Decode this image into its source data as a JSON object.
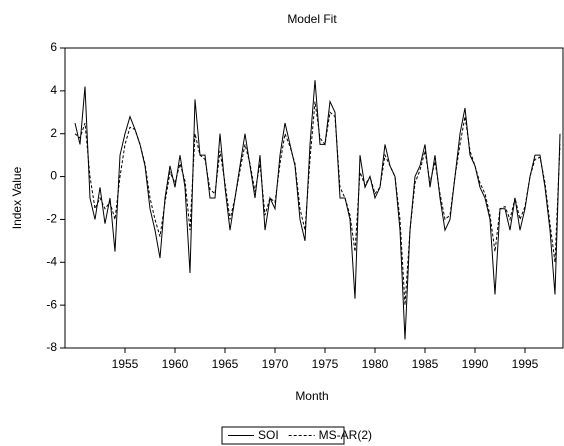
{
  "chart_data": {
    "type": "line",
    "title": "Model Fit",
    "x_label": "Month",
    "y_label": "Index Value",
    "x": [
      1950.0,
      1950.5,
      1951.0,
      1951.5,
      1952.0,
      1952.5,
      1953.0,
      1953.5,
      1954.0,
      1954.5,
      1955.0,
      1955.5,
      1956.0,
      1956.5,
      1957.0,
      1957.5,
      1958.0,
      1958.5,
      1959.0,
      1959.5,
      1960.0,
      1960.5,
      1961.0,
      1961.5,
      1962.0,
      1962.5,
      1963.0,
      1963.5,
      1964.0,
      1964.5,
      1965.0,
      1965.5,
      1966.0,
      1966.5,
      1967.0,
      1967.5,
      1968.0,
      1968.5,
      1969.0,
      1969.5,
      1970.0,
      1970.5,
      1971.0,
      1971.5,
      1972.0,
      1972.5,
      1973.0,
      1973.5,
      1974.0,
      1974.5,
      1975.0,
      1975.5,
      1976.0,
      1976.5,
      1977.0,
      1977.5,
      1978.0,
      1978.5,
      1979.0,
      1979.5,
      1980.0,
      1980.5,
      1981.0,
      1981.5,
      1982.0,
      1982.5,
      1983.0,
      1983.5,
      1984.0,
      1984.5,
      1985.0,
      1985.5,
      1986.0,
      1986.5,
      1987.0,
      1987.5,
      1988.0,
      1988.5,
      1989.0,
      1989.5,
      1990.0,
      1990.5,
      1991.0,
      1991.5,
      1992.0,
      1992.5,
      1993.0,
      1993.5,
      1994.0,
      1994.5,
      1995.0,
      1995.5,
      1996.0,
      1996.5,
      1997.0,
      1997.5,
      1998.0,
      1998.5
    ],
    "series": [
      {
        "name": "SOI",
        "color": "#000000",
        "style": "solid",
        "values": [
          2.5,
          1.5,
          4.2,
          -1.0,
          -2.0,
          -0.5,
          -2.2,
          -1.0,
          -3.5,
          1.0,
          2.0,
          2.8,
          2.2,
          1.5,
          0.5,
          -1.5,
          -2.5,
          -3.8,
          -1.0,
          0.5,
          -0.5,
          1.0,
          -0.5,
          -4.5,
          3.6,
          1.0,
          1.0,
          -1.0,
          -1.0,
          2.0,
          -0.5,
          -2.5,
          -1.0,
          0.5,
          2.0,
          0.5,
          -1.0,
          1.0,
          -2.5,
          -1.0,
          -1.5,
          1.0,
          2.5,
          1.5,
          0.5,
          -2.0,
          -3.0,
          1.5,
          4.5,
          1.5,
          1.5,
          3.5,
          3.0,
          -1.0,
          -1.0,
          -2.0,
          -5.7,
          1.0,
          -0.5,
          0.0,
          -1.0,
          -0.5,
          1.5,
          0.5,
          0.0,
          -2.5,
          -7.6,
          -2.5,
          0.0,
          0.5,
          1.5,
          -0.5,
          1.0,
          -1.0,
          -2.5,
          -2.0,
          0.0,
          2.0,
          3.2,
          1.0,
          0.5,
          -0.5,
          -1.0,
          -2.0,
          -5.5,
          -1.5,
          -1.5,
          -2.5,
          -1.0,
          -2.5,
          -1.5,
          0.0,
          1.0,
          1.0,
          -0.5,
          -2.5,
          -5.5,
          2.0
        ]
      },
      {
        "name": "MS-AR(2)",
        "color": "#000000",
        "style": "dashed",
        "values": [
          2.0,
          1.8,
          2.5,
          0.0,
          -1.5,
          -1.0,
          -1.5,
          -1.2,
          -2.0,
          0.0,
          1.5,
          2.3,
          2.2,
          1.5,
          0.6,
          -1.0,
          -2.0,
          -2.8,
          -1.2,
          0.2,
          -0.3,
          0.6,
          -0.2,
          -2.5,
          2.0,
          1.0,
          0.8,
          -0.6,
          -0.8,
          1.2,
          -0.3,
          -2.0,
          -1.0,
          0.3,
          1.5,
          0.6,
          -0.7,
          0.6,
          -1.8,
          -1.0,
          -1.2,
          0.6,
          2.0,
          1.4,
          0.6,
          -1.5,
          -2.5,
          0.8,
          3.5,
          1.8,
          1.5,
          3.0,
          2.8,
          -0.5,
          -1.0,
          -1.8,
          -3.5,
          0.2,
          -0.4,
          0.0,
          -0.8,
          -0.5,
          1.0,
          0.5,
          0.0,
          -2.0,
          -6.0,
          -2.5,
          -0.3,
          0.3,
          1.2,
          -0.3,
          0.7,
          -0.8,
          -2.0,
          -1.8,
          0.0,
          1.5,
          2.8,
          1.2,
          0.5,
          -0.3,
          -0.8,
          -1.8,
          -3.5,
          -1.5,
          -1.4,
          -2.0,
          -1.0,
          -2.0,
          -1.4,
          0.0,
          0.8,
          0.9,
          -0.3,
          -2.2,
          -4.0,
          1.5
        ]
      }
    ],
    "xlim": [
      1949,
      1998.8
    ],
    "xticks": [
      1955,
      1960,
      1965,
      1970,
      1975,
      1980,
      1985,
      1990,
      1995
    ],
    "ylim": [
      -8,
      6
    ],
    "yticks": [
      -8,
      -6,
      -4,
      -2,
      0,
      2,
      4,
      6
    ],
    "legend": "bottom"
  }
}
